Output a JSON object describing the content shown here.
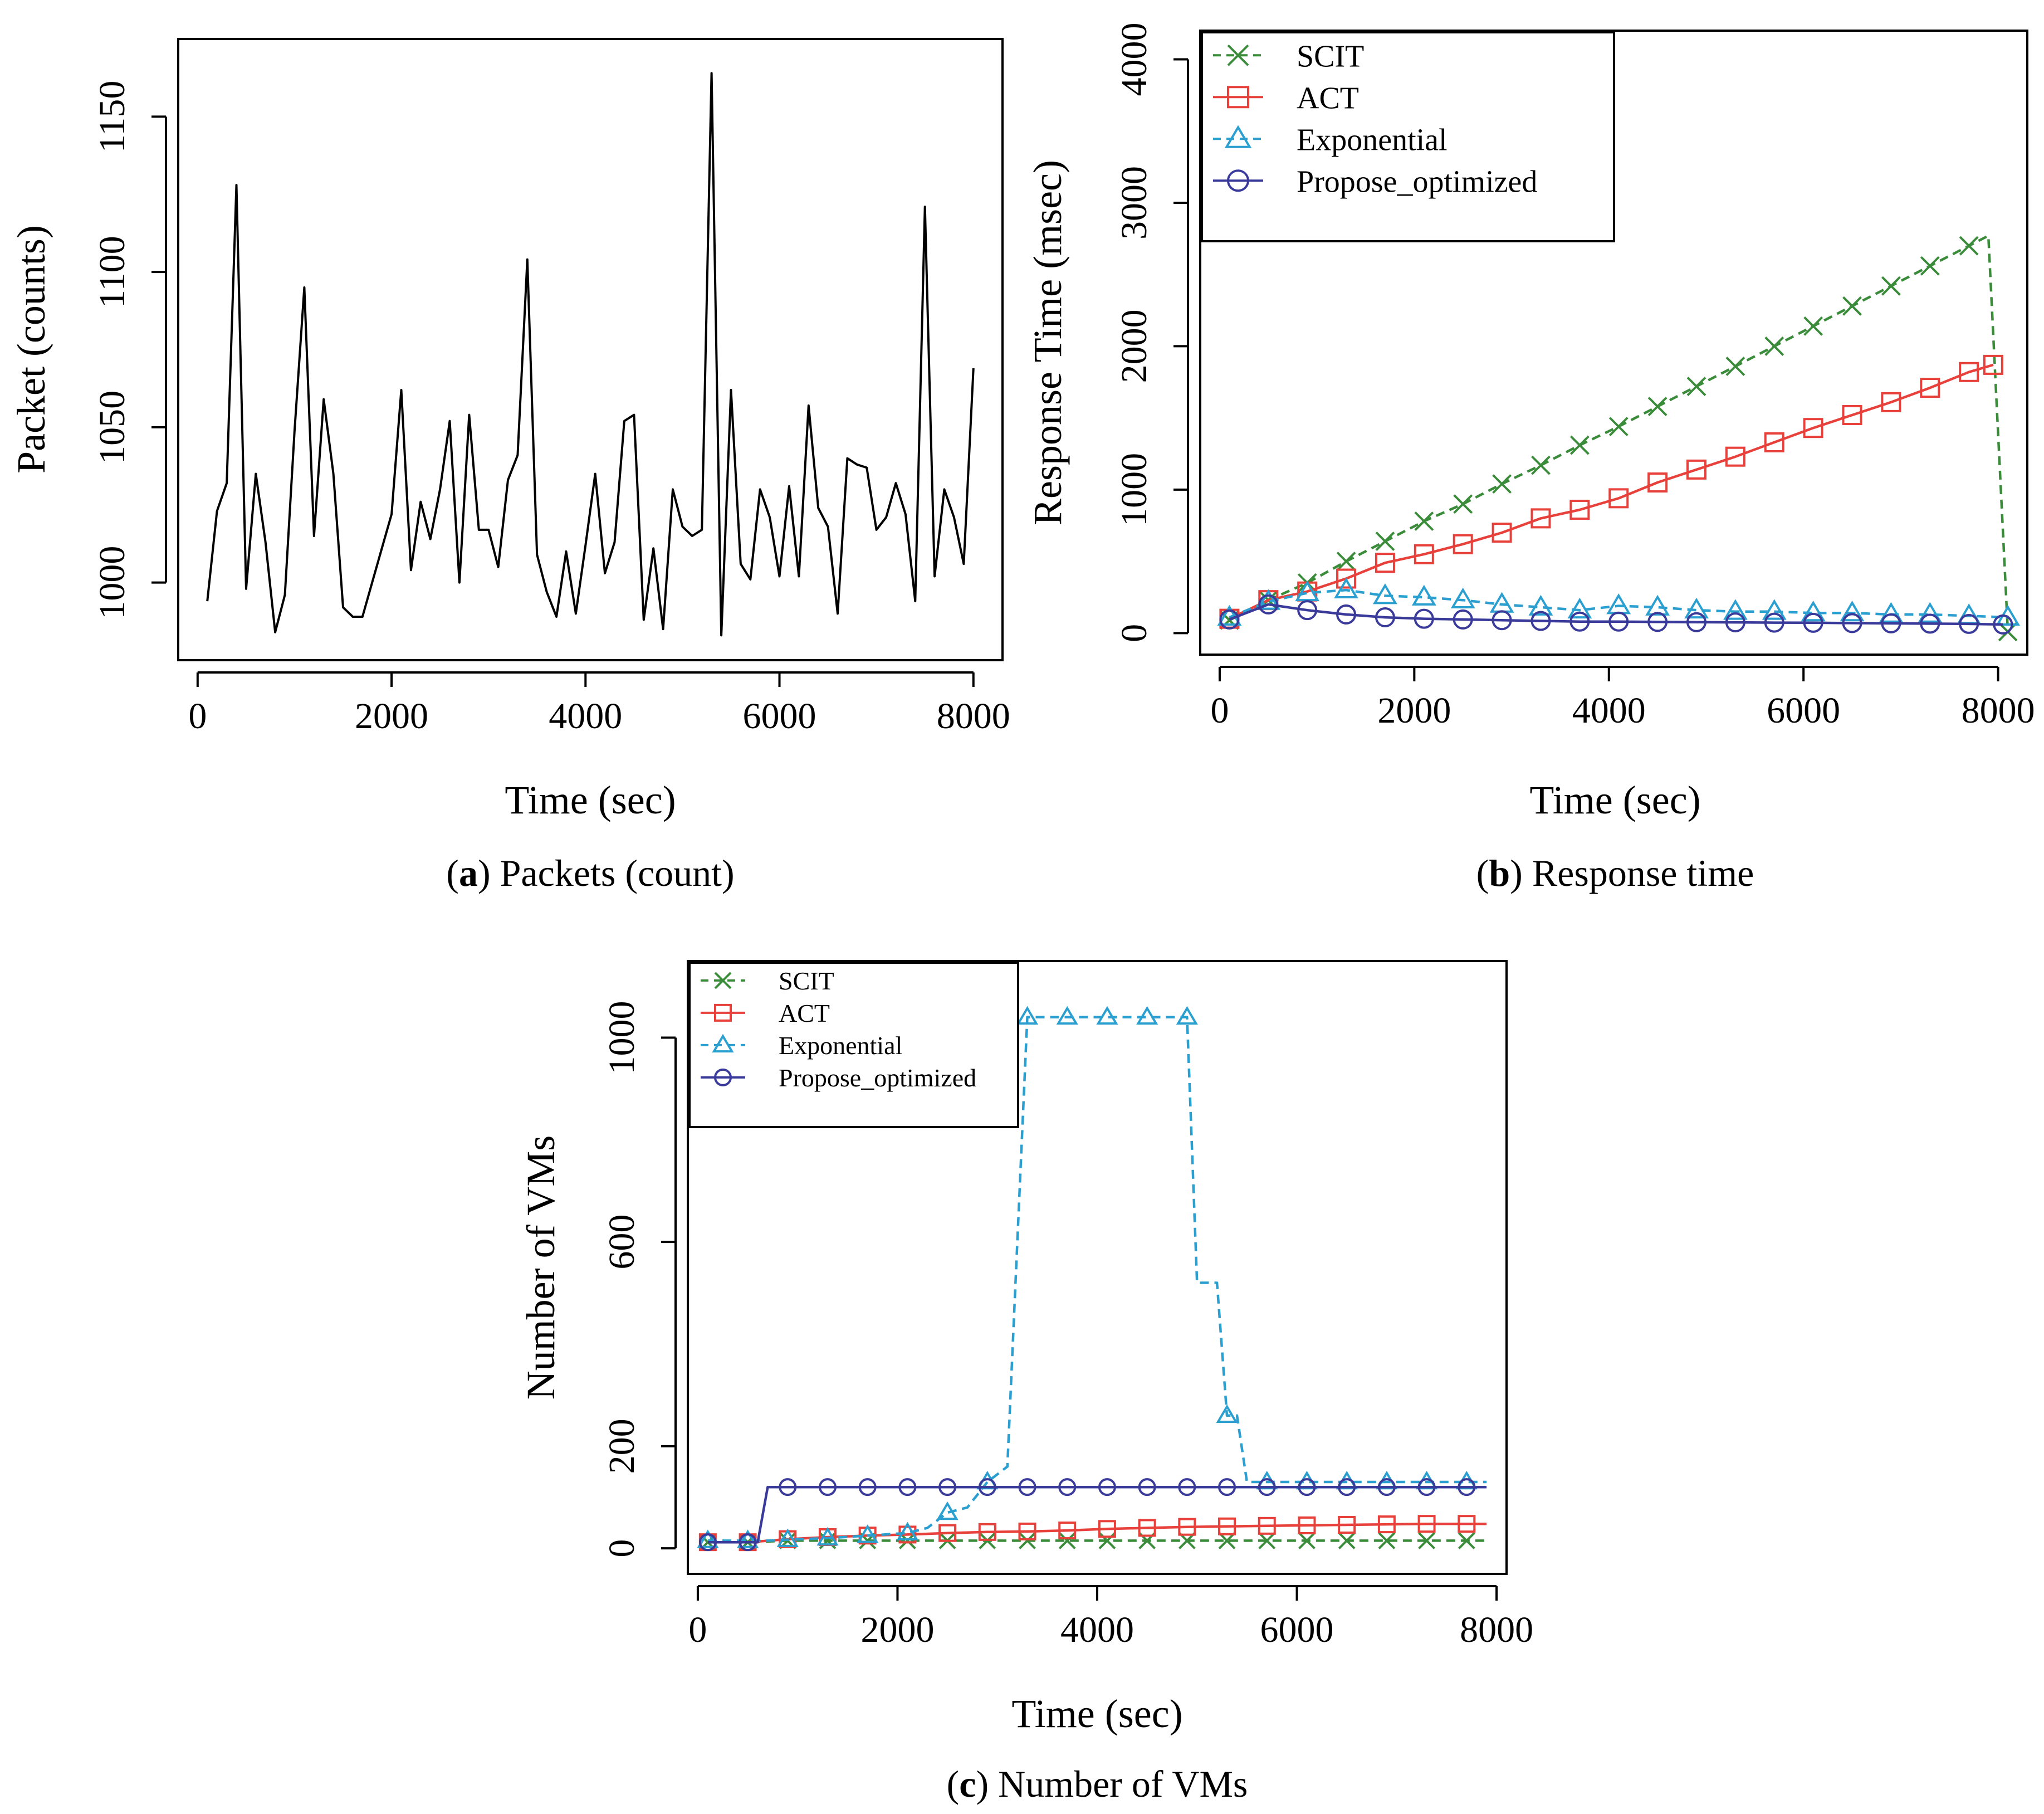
{
  "captions": {
    "a": {
      "letter": "a",
      "text": " Packets (count)"
    },
    "b": {
      "letter": "b",
      "text": " Response time"
    },
    "c": {
      "letter": "c",
      "text": " Number of VMs"
    }
  },
  "chart_data": [
    {
      "id": "a",
      "type": "line",
      "title": "",
      "xlabel": "Time (sec)",
      "ylabel": "Packet (counts)",
      "xlim": [
        -200,
        8300
      ],
      "ylim": [
        975,
        1175
      ],
      "xticks": [
        0,
        2000,
        4000,
        6000,
        8000
      ],
      "yticks": [
        1000,
        1050,
        1100,
        1150
      ],
      "xtick_labels": [
        "0",
        "2000",
        "4000",
        "6000",
        "8000"
      ],
      "ytick_labels": [
        "1000",
        "1050",
        "1100",
        "1150"
      ],
      "series": [
        {
          "name": "Packets",
          "color": "#000000",
          "dash": "",
          "marker": "none",
          "x": [
            100,
            200,
            300,
            400,
            500,
            600,
            700,
            800,
            900,
            1000,
            1100,
            1200,
            1300,
            1400,
            1500,
            1600,
            1700,
            1800,
            1900,
            2000,
            2100,
            2200,
            2300,
            2400,
            2500,
            2600,
            2700,
            2800,
            2900,
            3000,
            3100,
            3200,
            3300,
            3400,
            3500,
            3600,
            3700,
            3800,
            3900,
            4000,
            4100,
            4200,
            4300,
            4400,
            4500,
            4600,
            4700,
            4800,
            4900,
            5000,
            5100,
            5200,
            5300,
            5400,
            5500,
            5600,
            5700,
            5800,
            5900,
            6000,
            6100,
            6200,
            6300,
            6400,
            6500,
            6600,
            6700,
            6800,
            6900,
            7000,
            7100,
            7200,
            7300,
            7400,
            7500,
            7600,
            7700,
            7800,
            7900,
            8000
          ],
          "y": [
            994,
            1023,
            1032,
            1128,
            998,
            1035,
            1013,
            984,
            996,
            1049,
            1095,
            1015,
            1059,
            1035,
            992,
            989,
            989,
            1000,
            1011,
            1022,
            1062,
            1004,
            1026,
            1014,
            1030,
            1052,
            1000,
            1054,
            1017,
            1017,
            1005,
            1033,
            1041,
            1104,
            1009,
            997,
            989,
            1010,
            990,
            1012,
            1035,
            1003,
            1013,
            1052,
            1054,
            988,
            1011,
            985,
            1030,
            1018,
            1015,
            1017,
            1164,
            983,
            1062,
            1006,
            1001,
            1030,
            1021,
            1002,
            1031,
            1002,
            1057,
            1024,
            1018,
            990,
            1040,
            1038,
            1037,
            1017,
            1021,
            1032,
            1022,
            994,
            1121,
            1002,
            1030,
            1021,
            1006,
            1069
          ]
        }
      ]
    },
    {
      "id": "b",
      "type": "line",
      "title": "",
      "xlabel": "Time (sec)",
      "ylabel": "Response Time (msec)",
      "xlim": [
        -200,
        8300
      ],
      "ylim": [
        -150,
        4200
      ],
      "xticks": [
        0,
        2000,
        4000,
        6000,
        8000
      ],
      "yticks": [
        0,
        1000,
        2000,
        3000,
        4000
      ],
      "xtick_labels": [
        "0",
        "2000",
        "4000",
        "6000",
        "8000"
      ],
      "ytick_labels": [
        "0",
        "1000",
        "2000",
        "3000",
        "4000"
      ],
      "legend": "top-left",
      "series": [
        {
          "name": "SCIT",
          "color": "#3a8c3a",
          "dash": "16,10",
          "marker": "x",
          "x": [
            100,
            500,
            900,
            1300,
            1700,
            2100,
            2500,
            2900,
            3300,
            3700,
            4100,
            4500,
            4900,
            5300,
            5700,
            6100,
            6500,
            6900,
            7300,
            7700,
            7900,
            8100
          ],
          "y": [
            90,
            230,
            350,
            500,
            640,
            780,
            900,
            1040,
            1170,
            1310,
            1440,
            1580,
            1720,
            1860,
            2000,
            2140,
            2280,
            2420,
            2560,
            2700,
            2770,
            10
          ]
        },
        {
          "name": "ACT",
          "color": "#e8403a",
          "dash": "",
          "marker": "square",
          "x": [
            100,
            500,
            900,
            1300,
            1700,
            2100,
            2500,
            2900,
            3300,
            3700,
            4100,
            4500,
            4900,
            5300,
            5700,
            6100,
            6500,
            6900,
            7300,
            7700,
            7950
          ],
          "y": [
            100,
            230,
            290,
            380,
            490,
            550,
            620,
            700,
            800,
            860,
            940,
            1050,
            1140,
            1230,
            1330,
            1430,
            1520,
            1610,
            1710,
            1820,
            1870
          ]
        },
        {
          "name": "Exponential",
          "color": "#2a9fd0",
          "dash": "16,10",
          "marker": "triangle",
          "x": [
            100,
            500,
            900,
            1300,
            1700,
            2100,
            2500,
            2900,
            3300,
            3700,
            4100,
            4500,
            4900,
            5300,
            5700,
            6100,
            6500,
            6900,
            7300,
            7700,
            8100
          ],
          "y": [
            110,
            220,
            280,
            300,
            260,
            250,
            230,
            200,
            180,
            160,
            190,
            180,
            160,
            150,
            150,
            140,
            140,
            130,
            130,
            120,
            110
          ]
        },
        {
          "name": "Propose_optimized",
          "color": "#3a3a9a",
          "dash": "",
          "marker": "circle",
          "x": [
            100,
            500,
            900,
            1300,
            1700,
            2100,
            2500,
            2900,
            3300,
            3700,
            4100,
            4500,
            4900,
            5300,
            5700,
            6100,
            6500,
            6900,
            7300,
            7700,
            8050
          ],
          "y": [
            95,
            200,
            160,
            130,
            110,
            100,
            95,
            90,
            85,
            80,
            80,
            78,
            76,
            75,
            73,
            72,
            70,
            68,
            66,
            64,
            60
          ]
        }
      ]
    },
    {
      "id": "c",
      "type": "line",
      "title": "",
      "xlabel": "Time (sec)",
      "ylabel": "Number of VMs",
      "xlim": [
        -100,
        8100
      ],
      "ylim": [
        -50,
        1150
      ],
      "xticks": [
        0,
        2000,
        4000,
        6000,
        8000
      ],
      "yticks": [
        0,
        200,
        600,
        1000
      ],
      "xtick_labels": [
        "0",
        "2000",
        "4000",
        "6000",
        "8000"
      ],
      "ytick_labels": [
        "0",
        "200",
        "600",
        "1000"
      ],
      "legend": "top-left",
      "series": [
        {
          "name": "SCIT",
          "color": "#3a8c3a",
          "dash": "16,10",
          "marker": "x",
          "x": [
            100,
            500,
            900,
            1300,
            1700,
            2100,
            2500,
            2900,
            3300,
            3700,
            4100,
            4500,
            4900,
            5300,
            5700,
            6100,
            6500,
            6900,
            7300,
            7700,
            7900
          ],
          "y": [
            12,
            12,
            15,
            15,
            15,
            15,
            15,
            15,
            15,
            15,
            15,
            15,
            15,
            15,
            15,
            15,
            15,
            15,
            15,
            15,
            15
          ]
        },
        {
          "name": "ACT",
          "color": "#e8403a",
          "dash": "",
          "marker": "square",
          "x": [
            100,
            500,
            900,
            1300,
            1700,
            2100,
            2500,
            2900,
            3300,
            3700,
            4100,
            4500,
            4900,
            5300,
            5700,
            6100,
            6500,
            6900,
            7300,
            7700,
            7900
          ],
          "y": [
            12,
            12,
            18,
            22,
            25,
            27,
            30,
            32,
            33,
            35,
            38,
            40,
            42,
            43,
            44,
            45,
            46,
            47,
            48,
            48,
            48
          ]
        },
        {
          "name": "Exponential",
          "color": "#2a9fd0",
          "dash": "16,10",
          "marker": "triangle",
          "x": [
            100,
            500,
            700,
            900,
            1300,
            1700,
            2100,
            2300,
            2500,
            2700,
            2900,
            3100,
            3300,
            3700,
            4100,
            4500,
            4900,
            5000,
            5100,
            5200,
            5300,
            5400,
            5500,
            5600,
            5700,
            6100,
            6500,
            6900,
            7300,
            7700,
            7900
          ],
          "y": [
            15,
            15,
            15,
            17,
            20,
            25,
            30,
            40,
            70,
            80,
            130,
            160,
            1040,
            1040,
            1040,
            1040,
            1040,
            520,
            520,
            520,
            260,
            260,
            130,
            130,
            130,
            130,
            130,
            130,
            130,
            130,
            130
          ]
        },
        {
          "name": "Propose_optimized",
          "color": "#3a3a9a",
          "dash": "",
          "marker": "circle",
          "x": [
            100,
            500,
            600,
            700,
            900,
            1300,
            1700,
            2100,
            2500,
            2900,
            3300,
            3700,
            4100,
            4500,
            4900,
            5300,
            5700,
            6100,
            6500,
            6900,
            7300,
            7700,
            7900
          ],
          "y": [
            12,
            12,
            12,
            120,
            120,
            120,
            120,
            120,
            120,
            120,
            120,
            120,
            120,
            120,
            120,
            120,
            120,
            120,
            120,
            120,
            120,
            120,
            120
          ]
        }
      ]
    }
  ]
}
